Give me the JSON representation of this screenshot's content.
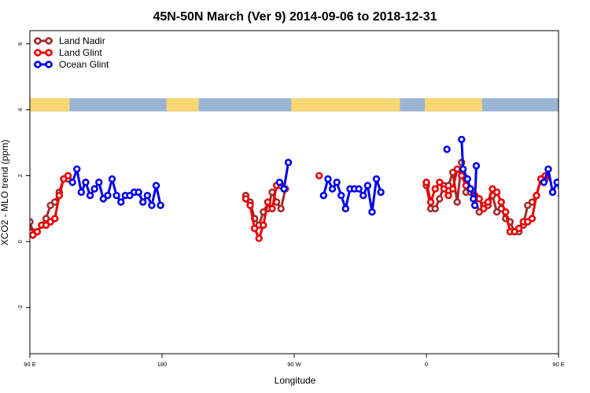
{
  "chart_data": {
    "type": "line",
    "title": "45N-50N March (Ver 9)   2014-09-06 to 2018-12-31",
    "xlabel": "Longitude",
    "ylabel": "XCO2 - MLO trend (ppm)",
    "xlim": [
      90,
      450
    ],
    "ylim": [
      -3.4,
      6.4
    ],
    "x_ticks": [
      {
        "value": 90,
        "label": "90 E"
      },
      {
        "value": 180,
        "label": "180"
      },
      {
        "value": 270,
        "label": "90 W"
      },
      {
        "value": 360,
        "label": "0"
      },
      {
        "value": 450,
        "label": "90 E"
      },
      {
        "value": 540,
        "label": "180"
      }
    ],
    "y_ticks": [
      -2,
      0,
      2,
      4,
      6
    ],
    "legend_position": "top-left",
    "map_band": {
      "y_range": [
        3.95,
        4.35
      ],
      "ocean_color": "#9bb4d6",
      "land_color": "#f7d774"
    },
    "series": [
      {
        "name": "Land Nadir",
        "color": "#a52a2a",
        "segments": [
          [
            [
              90,
              0.6
            ],
            [
              92,
              0.3
            ],
            [
              95,
              0.3
            ],
            [
              98,
              0.5
            ],
            [
              101,
              0.7
            ],
            [
              104,
              1.1
            ],
            [
              107,
              1.2
            ],
            [
              110,
              1.5
            ],
            [
              113,
              1.9
            ],
            [
              116,
              1.9
            ]
          ],
          [
            [
              237,
              1.4
            ],
            [
              240,
              1.2
            ],
            [
              243,
              0.7
            ],
            [
              246,
              0.5
            ],
            [
              249,
              0.9
            ],
            [
              252,
              1.0
            ],
            [
              255,
              1.5
            ],
            [
              258,
              1.2
            ],
            [
              261,
              1.0
            ],
            [
              264,
              1.6
            ]
          ],
          [
            [
              360,
              1.7
            ],
            [
              363,
              1.0
            ],
            [
              366,
              1.0
            ],
            [
              369,
              1.3
            ],
            [
              372,
              1.7
            ],
            [
              375,
              1.7
            ],
            [
              378,
              2.1
            ],
            [
              381,
              1.2
            ],
            [
              384,
              2.4
            ],
            [
              387,
              1.5
            ],
            [
              390,
              1.5
            ],
            [
              393,
              1.3
            ],
            [
              396,
              0.9
            ],
            [
              399,
              1.1
            ],
            [
              402,
              1.1
            ],
            [
              405,
              1.4
            ],
            [
              408,
              0.9
            ],
            [
              411,
              1.0
            ],
            [
              414,
              0.7
            ],
            [
              417,
              0.6
            ],
            [
              420,
              0.3
            ],
            [
              423,
              0.3
            ],
            [
              426,
              0.5
            ],
            [
              429,
              1.1
            ],
            [
              432,
              1.2
            ],
            [
              435,
              1.4
            ],
            [
              438,
              1.9
            ],
            [
              441,
              1.9
            ]
          ]
        ]
      },
      {
        "name": "Land Glint",
        "color": "#ee0000",
        "segments": [
          [
            [
              90,
              0.3
            ],
            [
              92,
              0.2
            ],
            [
              95,
              0.3
            ],
            [
              98,
              0.5
            ],
            [
              101,
              0.5
            ],
            [
              104,
              0.6
            ],
            [
              107,
              0.7
            ],
            [
              110,
              1.4
            ],
            [
              113,
              1.9
            ],
            [
              116,
              2.0
            ]
          ],
          [
            [
              237,
              1.3
            ],
            [
              240,
              1.1
            ],
            [
              243,
              0.4
            ],
            [
              246,
              0.1
            ],
            [
              249,
              0.5
            ],
            [
              252,
              1.2
            ],
            [
              255,
              1.0
            ],
            [
              258,
              1.7
            ],
            [
              261,
              1.7
            ]
          ],
          [
            [
              287,
              2.0
            ]
          ],
          [
            [
              360,
              1.8
            ],
            [
              363,
              1.2
            ],
            [
              366,
              1.6
            ],
            [
              369,
              1.8
            ],
            [
              372,
              1.6
            ],
            [
              375,
              1.4
            ],
            [
              378,
              1.6
            ],
            [
              381,
              2.2
            ],
            [
              384,
              2.0
            ],
            [
              387,
              1.7
            ],
            [
              390,
              1.6
            ],
            [
              393,
              1.4
            ],
            [
              396,
              1.3
            ],
            [
              399,
              1.0
            ],
            [
              402,
              1.2
            ],
            [
              405,
              1.6
            ],
            [
              408,
              1.5
            ],
            [
              411,
              1.2
            ],
            [
              414,
              0.9
            ],
            [
              417,
              0.3
            ],
            [
              420,
              0.3
            ],
            [
              423,
              0.4
            ],
            [
              426,
              0.6
            ],
            [
              429,
              0.6
            ],
            [
              432,
              0.7
            ],
            [
              435,
              1.4
            ],
            [
              438,
              1.9
            ],
            [
              441,
              2.0
            ]
          ]
        ]
      },
      {
        "name": "Ocean Glint",
        "color": "#0000ee",
        "segments": [
          [
            [
              119,
              1.8
            ],
            [
              122,
              2.2
            ],
            [
              125,
              1.5
            ],
            [
              128,
              1.8
            ],
            [
              131,
              1.4
            ],
            [
              134,
              1.6
            ],
            [
              137,
              1.8
            ],
            [
              140,
              1.3
            ],
            [
              143,
              1.4
            ],
            [
              146,
              1.9
            ],
            [
              149,
              1.4
            ],
            [
              152,
              1.2
            ],
            [
              155,
              1.4
            ],
            [
              158,
              1.4
            ],
            [
              161,
              1.5
            ],
            [
              164,
              1.5
            ],
            [
              167,
              1.2
            ],
            [
              170,
              1.4
            ],
            [
              173,
              1.1
            ],
            [
              176,
              1.7
            ],
            [
              179,
              1.1
            ]
          ],
          [
            [
              260,
              1.8
            ],
            [
              263,
              1.6
            ],
            [
              266,
              2.4
            ]
          ],
          [
            [
              290,
              1.4
            ],
            [
              293,
              1.9
            ],
            [
              296,
              1.6
            ],
            [
              299,
              1.8
            ],
            [
              302,
              1.4
            ],
            [
              305,
              1.0
            ],
            [
              308,
              1.6
            ],
            [
              311,
              1.6
            ],
            [
              314,
              1.6
            ],
            [
              317,
              1.4
            ],
            [
              320,
              1.7
            ],
            [
              323,
              0.9
            ],
            [
              326,
              1.9
            ],
            [
              329,
              1.5
            ]
          ],
          [
            [
              374,
              2.8
            ]
          ],
          [
            [
              384,
              3.1
            ],
            [
              385,
              2.2
            ],
            [
              388,
              1.9
            ],
            [
              390,
              1.6
            ],
            [
              392,
              1.3
            ],
            [
              393,
              1.1
            ],
            [
              394,
              2.3
            ]
          ],
          [
            [
              440,
              1.8
            ],
            [
              443,
              2.2
            ],
            [
              446,
              1.5
            ],
            [
              449,
              1.8
            ],
            [
              452,
              1.4
            ],
            [
              455,
              1.6
            ],
            [
              458,
              1.8
            ],
            [
              461,
              1.3
            ],
            [
              464,
              1.4
            ]
          ]
        ]
      }
    ]
  }
}
